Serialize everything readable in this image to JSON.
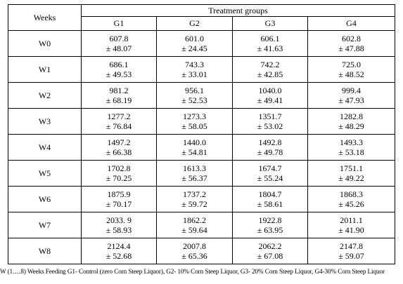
{
  "table": {
    "weeks_header": "Weeks",
    "group_header": "Treatment  groups",
    "groups": [
      "G1",
      "G2",
      "G3",
      "G4"
    ],
    "rows": [
      {
        "week": "W0",
        "cells": [
          {
            "mean": "607.8",
            "sd": "± 48.07"
          },
          {
            "mean": "601.0",
            "sd": "± 24.45"
          },
          {
            "mean": "606.1",
            "sd": "± 41.63"
          },
          {
            "mean": "602.8",
            "sd": "± 47.88"
          }
        ]
      },
      {
        "week": "W1",
        "cells": [
          {
            "mean": "686.1",
            "sd": "± 49.53"
          },
          {
            "mean": "743.3",
            "sd": "± 33.01"
          },
          {
            "mean": "742.2",
            "sd": "± 42.85"
          },
          {
            "mean": "725.0",
            "sd": "± 48.52"
          }
        ]
      },
      {
        "week": "W2",
        "cells": [
          {
            "mean": "981.2",
            "sd": "± 68.19"
          },
          {
            "mean": "956.1",
            "sd": "± 52.53"
          },
          {
            "mean": "1040.0",
            "sd": "± 49.41"
          },
          {
            "mean": "999.4",
            "sd": "± 47.93"
          }
        ]
      },
      {
        "week": "W3",
        "cells": [
          {
            "mean": "1277.2",
            "sd": "± 76.84"
          },
          {
            "mean": "1273.3",
            "sd": "± 58.05"
          },
          {
            "mean": "1351.7",
            "sd": "± 53.02"
          },
          {
            "mean": "1282.8",
            "sd": "± 48.29"
          }
        ]
      },
      {
        "week": "W4",
        "cells": [
          {
            "mean": "1497.2",
            "sd": "± 66.38"
          },
          {
            "mean": "1440.0",
            "sd": "± 54.81"
          },
          {
            "mean": "1492.8",
            "sd": "± 49.78"
          },
          {
            "mean": "1493.3",
            "sd": "± 53.18"
          }
        ]
      },
      {
        "week": "W5",
        "cells": [
          {
            "mean": "1702.8",
            "sd": "± 70.25"
          },
          {
            "mean": "1613.3",
            "sd": "± 56.37"
          },
          {
            "mean": "1674.7",
            "sd": "± 55.24"
          },
          {
            "mean": "1751.1",
            "sd": "± 49.22"
          }
        ]
      },
      {
        "week": "W6",
        "cells": [
          {
            "mean": "1875.9",
            "sd": "± 70.17"
          },
          {
            "mean": "1737.2",
            "sd": "± 59.72"
          },
          {
            "mean": "1804.7",
            "sd": "± 58.61"
          },
          {
            "mean": "1868.3",
            "sd": "± 45.26"
          }
        ]
      },
      {
        "week": "W7",
        "cells": [
          {
            "mean": "2033.  9",
            "sd": "± 58.93"
          },
          {
            "mean": "1862.2",
            "sd": "± 59.64"
          },
          {
            "mean": "1922.8",
            "sd": "± 63.95"
          },
          {
            "mean": "2011.1",
            "sd": "± 41.90"
          }
        ]
      },
      {
        "week": "W8",
        "cells": [
          {
            "mean": "2124.4",
            "sd": "± 52.68"
          },
          {
            "mean": "2007.8",
            "sd": "± 65.36"
          },
          {
            "mean": "2062.2",
            "sd": "± 67.08"
          },
          {
            "mean": "2147.8",
            "sd": "± 59.07"
          }
        ]
      }
    ]
  },
  "footnote": "W (1….8) Weeks Feeding G1- Control (zero Corn Steep Liquor), G2- 10% Corn Steep Liquor, G3- 20% Corn Steep Liquor, G4-30% Corn Steep Liquor"
}
